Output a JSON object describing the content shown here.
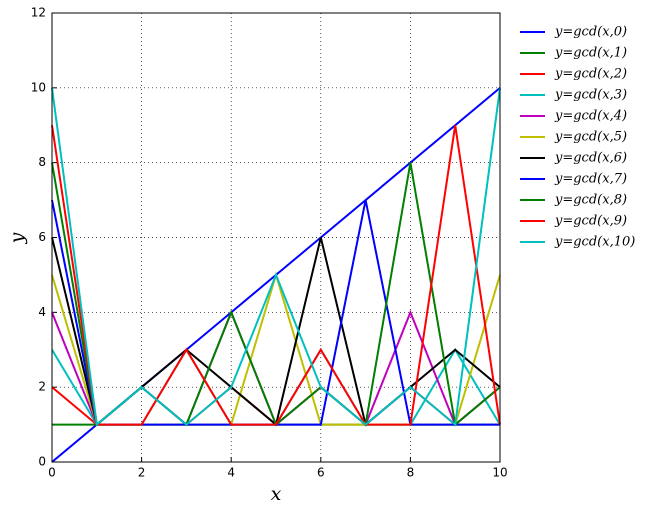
{
  "chart_data": {
    "type": "line",
    "x_label": "x",
    "y_label": "y",
    "x": [
      0,
      1,
      2,
      3,
      4,
      5,
      6,
      7,
      8,
      9,
      10
    ],
    "xlim": [
      0,
      10
    ],
    "xticks": [
      0,
      2,
      4,
      6,
      8,
      10
    ],
    "ylim": [
      0,
      12
    ],
    "yticks": [
      0,
      2,
      4,
      6,
      8,
      10,
      12
    ],
    "grid": true,
    "legend": "outside-right",
    "series": [
      {
        "name": "y=gcd(x,0)",
        "color": "#0000ff",
        "values": [
          0,
          1,
          2,
          3,
          4,
          5,
          6,
          7,
          8,
          9,
          10
        ]
      },
      {
        "name": "y=gcd(x,1)",
        "color": "#008000",
        "values": [
          1,
          1,
          1,
          1,
          1,
          1,
          1,
          1,
          1,
          1,
          1
        ]
      },
      {
        "name": "y=gcd(x,2)",
        "color": "#ff0000",
        "values": [
          2,
          1,
          2,
          1,
          2,
          1,
          2,
          1,
          2,
          1,
          2
        ]
      },
      {
        "name": "y=gcd(x,3)",
        "color": "#00bfbf",
        "values": [
          3,
          1,
          1,
          3,
          1,
          1,
          3,
          1,
          1,
          3,
          1
        ]
      },
      {
        "name": "y=gcd(x,4)",
        "color": "#bf00bf",
        "values": [
          4,
          1,
          2,
          1,
          4,
          1,
          2,
          1,
          4,
          1,
          2
        ]
      },
      {
        "name": "y=gcd(x,5)",
        "color": "#bfbf00",
        "values": [
          5,
          1,
          1,
          1,
          1,
          5,
          1,
          1,
          1,
          1,
          5
        ]
      },
      {
        "name": "y=gcd(x,6)",
        "color": "#000000",
        "values": [
          6,
          1,
          2,
          3,
          2,
          1,
          6,
          1,
          2,
          3,
          2
        ]
      },
      {
        "name": "y=gcd(x,7)",
        "color": "#0000ff",
        "values": [
          7,
          1,
          1,
          1,
          1,
          1,
          1,
          7,
          1,
          1,
          1
        ]
      },
      {
        "name": "y=gcd(x,8)",
        "color": "#008000",
        "values": [
          8,
          1,
          2,
          1,
          4,
          1,
          2,
          1,
          8,
          1,
          2
        ]
      },
      {
        "name": "y=gcd(x,9)",
        "color": "#ff0000",
        "values": [
          9,
          1,
          1,
          3,
          1,
          1,
          3,
          1,
          1,
          9,
          1
        ]
      },
      {
        "name": "y=gcd(x,10)",
        "color": "#00bfbf",
        "values": [
          10,
          1,
          2,
          1,
          2,
          5,
          2,
          1,
          2,
          1,
          10
        ]
      }
    ]
  }
}
